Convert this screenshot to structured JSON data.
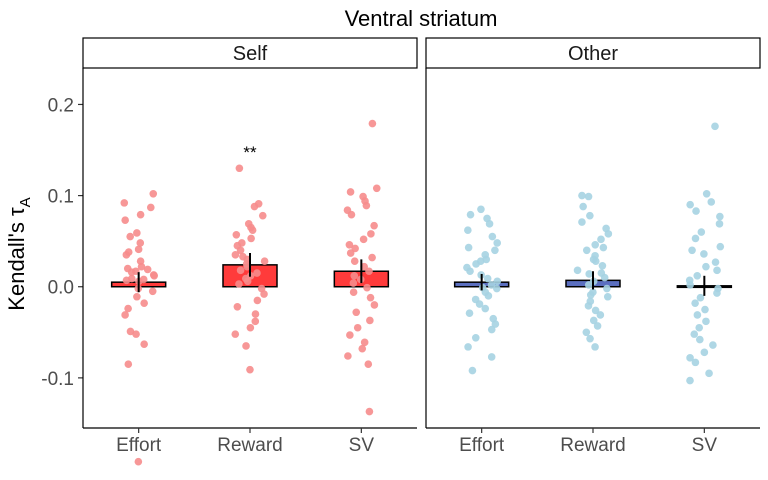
{
  "chart_data": {
    "type": "bar",
    "title": "Ventral striatum",
    "ylabel_main": "Kendall's τ",
    "ylabel_sub": "A",
    "ylim": [
      -0.155,
      0.24
    ],
    "yticks": [
      {
        "value": -0.1,
        "label": "-0.1"
      },
      {
        "value": 0.0,
        "label": "0.0"
      },
      {
        "value": 0.1,
        "label": "0.1"
      },
      {
        "value": 0.2,
        "label": "0.2"
      }
    ],
    "categories": [
      "Effort",
      "Reward",
      "SV"
    ],
    "grid": false,
    "panels": [
      {
        "name": "Self",
        "bar_color": "#ff3b3b",
        "point_color": "#f68c8c",
        "bars": [
          {
            "category": "Effort",
            "value": 0.005,
            "se_low": -0.006,
            "se_high": 0.016
          },
          {
            "category": "Reward",
            "value": 0.024,
            "se_low": 0.011,
            "se_high": 0.037,
            "annotation": "**",
            "annotation_y": 0.148
          },
          {
            "category": "SV",
            "value": 0.017,
            "se_low": 0.004,
            "se_high": 0.03
          }
        ],
        "points": [
          [
            -0.192,
            0.028,
            0.035,
            -0.049,
            0.059,
            0.006,
            0.073,
            0.087,
            0.022,
            0.017,
            0.009,
            0.019,
            0.008,
            -0.031,
            0.041,
            0.055,
            -0.063,
            0.02,
            0.079,
            -0.002,
            -0.085,
            0.092,
            -0.005,
            0.013,
            0.007,
            -0.011,
            0.102,
            0.038,
            -0.052,
            0.048,
            -0.018,
            0.016,
            -0.024,
            0.012
          ],
          [
            0.13,
            0.091,
            0.088,
            0.078,
            0.065,
            0.062,
            0.057,
            0.053,
            0.048,
            0.045,
            0.04,
            0.035,
            0.03,
            0.028,
            0.025,
            0.022,
            0.018,
            0.015,
            0.012,
            0.009,
            0.006,
            0.003,
            -0.002,
            -0.008,
            -0.015,
            -0.022,
            -0.03,
            -0.038,
            -0.045,
            -0.052,
            -0.065,
            -0.091,
            0.069,
            0.033
          ],
          [
            0.179,
            0.108,
            0.104,
            0.099,
            0.094,
            0.089,
            0.084,
            0.079,
            0.067,
            0.058,
            0.046,
            0.042,
            0.037,
            0.032,
            0.028,
            0.022,
            0.017,
            0.012,
            0.008,
            0.004,
            -0.001,
            -0.006,
            -0.012,
            -0.02,
            -0.028,
            -0.037,
            -0.045,
            -0.053,
            -0.061,
            -0.068,
            -0.076,
            -0.085,
            -0.137,
            0.052
          ]
        ]
      },
      {
        "name": "Other",
        "bar_color": "#5b6fc0",
        "point_color": "#a6d3e2",
        "bars": [
          {
            "category": "Effort",
            "value": 0.005,
            "se_low": -0.004,
            "se_high": 0.014
          },
          {
            "category": "Reward",
            "value": 0.007,
            "se_low": -0.003,
            "se_high": 0.017
          },
          {
            "category": "SV",
            "value": 0.001,
            "se_low": -0.01,
            "se_high": 0.012
          }
        ],
        "points": [
          [
            0.085,
            0.079,
            0.075,
            0.069,
            0.062,
            0.055,
            0.048,
            0.043,
            0.04,
            0.035,
            0.03,
            0.025,
            0.021,
            0.017,
            0.013,
            0.009,
            0.006,
            0.002,
            -0.002,
            -0.006,
            -0.01,
            -0.014,
            -0.019,
            -0.024,
            -0.029,
            -0.035,
            -0.041,
            -0.047,
            -0.056,
            -0.066,
            -0.077,
            -0.092,
            0.028,
            -0.001
          ],
          [
            0.1,
            0.099,
            0.088,
            0.078,
            0.071,
            0.064,
            0.058,
            0.052,
            0.046,
            0.04,
            0.034,
            0.028,
            0.023,
            0.018,
            0.014,
            0.01,
            0.006,
            0.002,
            -0.002,
            -0.006,
            -0.011,
            -0.016,
            -0.021,
            -0.026,
            -0.031,
            -0.037,
            -0.043,
            -0.05,
            -0.057,
            -0.066,
            0.03,
            -0.009,
            0.015,
            0.043
          ],
          [
            0.176,
            0.102,
            0.093,
            0.09,
            0.083,
            0.077,
            0.069,
            0.06,
            0.053,
            0.044,
            0.036,
            0.027,
            0.022,
            0.018,
            0.012,
            0.007,
            0.002,
            -0.002,
            -0.007,
            -0.012,
            -0.018,
            -0.025,
            -0.031,
            -0.038,
            -0.045,
            -0.052,
            -0.058,
            -0.064,
            -0.072,
            -0.078,
            -0.083,
            -0.095,
            -0.103,
            0.04
          ]
        ]
      }
    ]
  }
}
